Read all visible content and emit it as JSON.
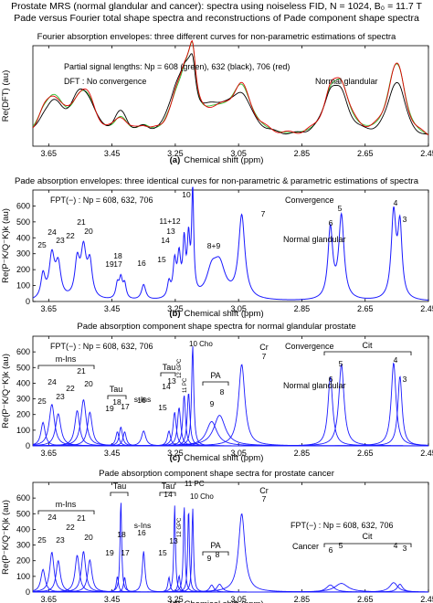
{
  "header": {
    "line1": "Prostate MRS (normal glandular and cancer): spectra using noiseless FID, N = 1024, B₀ = 11.7 T",
    "line2": "Pade versus Fourier total shape spectra and reconstructions of Pade component shape spectra"
  },
  "chart_data": [
    {
      "id": "a",
      "type": "line",
      "title": "Fourier absorption envelopes: three different curves for non-parametric estimations of spectra",
      "xlabel": "Chemical shift (ppm)",
      "ylabel": "Re(DFT) (au)",
      "caption_letter": "(a)",
      "xlim": [
        3.7,
        2.45
      ],
      "ylim": [
        0,
        1
      ],
      "x_ticks": [
        "3.65",
        "3.45",
        "3.25",
        "3.05",
        "2.85",
        "2.65",
        "2.45"
      ],
      "y_ticks": [],
      "annotations": [
        {
          "text": "Partial signal lengths: Np = 608 (green), 632 (black), 706 (red)"
        },
        {
          "text": "DFT : No convergence"
        },
        {
          "text": "Normal glandular"
        }
      ],
      "series": [
        {
          "name": "Np = 608",
          "color": "#2fbf2f"
        },
        {
          "name": "Np = 632",
          "color": "#000000"
        },
        {
          "name": "Np = 706",
          "color": "#e00000"
        }
      ]
    },
    {
      "id": "b",
      "type": "line",
      "title": "Pade absorption envelopes: three identical curves for non-parametric & parametric estimations of spectra",
      "xlabel": "Chemical shift (ppm)",
      "ylabel": "Re(P⁻K/Q⁻K)k (au)",
      "caption_letter": "(b)",
      "xlim": [
        3.7,
        2.45
      ],
      "ylim": [
        0,
        700
      ],
      "x_ticks": [
        "3.65",
        "3.45",
        "3.25",
        "3.05",
        "2.85",
        "2.65",
        "2.45"
      ],
      "y_ticks": [
        "0",
        "100",
        "200",
        "300",
        "400",
        "500",
        "600"
      ],
      "annotations": [
        {
          "text": "FPT(−) : Np = 608, 632, 706"
        },
        {
          "text": "Convergence"
        },
        {
          "text": "Normal glandular"
        }
      ],
      "peak_labels": [
        "25",
        "24",
        "23",
        "22",
        "21",
        "20",
        "19",
        "18",
        "17",
        "16",
        "15",
        "14",
        "13",
        "11+12",
        "10",
        "8+9",
        "7",
        "6",
        "5",
        "4",
        "3"
      ]
    },
    {
      "id": "c",
      "type": "line",
      "title": "Pade absorption component shape spectra for normal glandular prostate",
      "xlabel": "Chemical shift (ppm)",
      "ylabel": "Re(P⁻K/Q⁻K)k (au)",
      "caption_letter": "(c)",
      "xlim": [
        3.7,
        2.45
      ],
      "ylim": [
        0,
        700
      ],
      "x_ticks": [
        "3.65",
        "3.45",
        "3.25",
        "3.05",
        "2.85",
        "2.65",
        "2.45"
      ],
      "y_ticks": [
        "0",
        "100",
        "200",
        "300",
        "400",
        "500",
        "600"
      ],
      "annotations": [
        {
          "text": "FPT(−) : Np = 608, 632, 706"
        },
        {
          "text": "Convergence"
        },
        {
          "text": "Normal glandular"
        },
        {
          "text": "m-Ins"
        },
        {
          "text": "Tau"
        },
        {
          "text": "s-Ins"
        },
        {
          "text": "PA"
        },
        {
          "text": "Cr"
        },
        {
          "text": "Cit"
        },
        {
          "text": "10 Cho"
        },
        {
          "text": "11 PC"
        },
        {
          "text": "12 GPC"
        }
      ],
      "peak_labels": [
        "25",
        "24",
        "23",
        "22",
        "21",
        "20",
        "19",
        "18",
        "17",
        "16",
        "15",
        "14",
        "13",
        "9",
        "8",
        "7",
        "6",
        "5",
        "4",
        "3"
      ]
    },
    {
      "id": "d",
      "type": "line",
      "title": "Pade absorption component shape sectra for prostate cancer",
      "xlabel": "Chemical shift (ppm)",
      "ylabel": "Re(P⁻K/Q⁻K)k (au)",
      "caption_letter": "(d)",
      "xlim": [
        3.7,
        2.45
      ],
      "ylim": [
        0,
        700
      ],
      "x_ticks": [
        "3.65",
        "3.45",
        "3.25",
        "3.05",
        "2.85",
        "2.65",
        "2.45"
      ],
      "y_ticks": [
        "0",
        "100",
        "200",
        "300",
        "400",
        "500",
        "600"
      ],
      "annotations": [
        {
          "text": "FPT(−) : Np = 608, 632, 706"
        },
        {
          "text": "Cancer"
        },
        {
          "text": "m-Ins"
        },
        {
          "text": "Tau"
        },
        {
          "text": "s-Ins"
        },
        {
          "text": "PA"
        },
        {
          "text": "Cr"
        },
        {
          "text": "Cit"
        },
        {
          "text": "10 Cho"
        },
        {
          "text": "11 PC"
        },
        {
          "text": "12 GPC"
        }
      ],
      "peak_labels": [
        "25",
        "24",
        "23",
        "22",
        "21",
        "20",
        "19",
        "18",
        "17",
        "16",
        "15",
        "14",
        "13",
        "9",
        "8",
        "7",
        "6",
        "5",
        "4",
        "3"
      ]
    }
  ]
}
